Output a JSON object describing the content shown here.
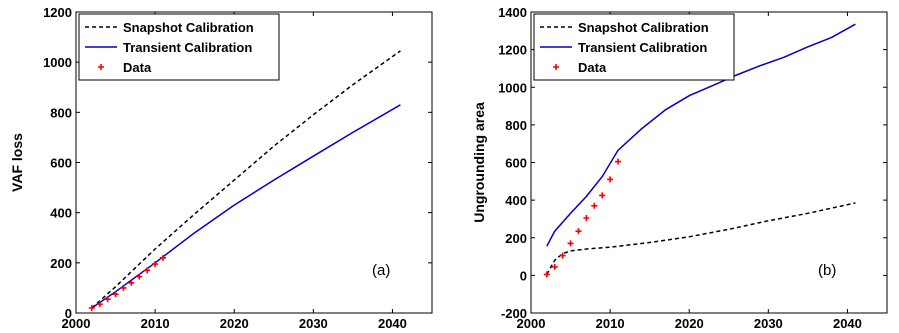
{
  "chart_data": [
    {
      "type": "line",
      "panel_label": "(a)",
      "xlabel": "",
      "ylabel": "VAF loss",
      "xlim": [
        2000,
        2045
      ],
      "ylim": [
        0,
        1200
      ],
      "xticks": [
        2000,
        2010,
        2020,
        2030,
        2040
      ],
      "yticks": [
        0,
        200,
        400,
        600,
        800,
        1000,
        1200
      ],
      "grid": false,
      "legend_position": "top-left",
      "series": [
        {
          "name": "Snapshot Calibration",
          "style": "dashed",
          "color": "#000000",
          "x": [
            2002,
            2005,
            2010,
            2015,
            2020,
            2025,
            2030,
            2035,
            2041
          ],
          "y": [
            20,
            105,
            255,
            395,
            530,
            665,
            790,
            910,
            1045
          ]
        },
        {
          "name": "Transient Calibration",
          "style": "solid",
          "color": "#0000cc",
          "x": [
            2002,
            2005,
            2010,
            2015,
            2020,
            2025,
            2030,
            2035,
            2041
          ],
          "y": [
            20,
            85,
            200,
            320,
            430,
            530,
            625,
            720,
            830
          ]
        },
        {
          "name": "Data",
          "style": "marker-plus",
          "color": "#ff0000",
          "x": [
            2002,
            2003,
            2004,
            2005,
            2006,
            2007,
            2008,
            2009,
            2010,
            2011
          ],
          "y": [
            20,
            35,
            55,
            75,
            100,
            120,
            145,
            170,
            195,
            220
          ]
        }
      ]
    },
    {
      "type": "line",
      "panel_label": "(b)",
      "xlabel": "",
      "ylabel": "Ungrounding area",
      "xlim": [
        2000,
        2045
      ],
      "ylim": [
        -200,
        1400
      ],
      "xticks": [
        2000,
        2010,
        2020,
        2030,
        2040
      ],
      "yticks": [
        -200,
        0,
        200,
        400,
        600,
        800,
        1000,
        1200,
        1400
      ],
      "grid": false,
      "legend_position": "top-left",
      "series": [
        {
          "name": "Snapshot Calibration",
          "style": "dashed",
          "color": "#000000",
          "x": [
            2002,
            2003,
            2004,
            2005,
            2007,
            2010,
            2015,
            2020,
            2025,
            2030,
            2035,
            2041
          ],
          "y": [
            5,
            80,
            115,
            130,
            140,
            150,
            175,
            205,
            245,
            290,
            330,
            385
          ]
        },
        {
          "name": "Transient Calibration",
          "style": "solid",
          "color": "#0000cc",
          "x": [
            2002,
            2003,
            2005,
            2007,
            2009,
            2011,
            2014,
            2017,
            2020,
            2023,
            2026,
            2029,
            2032,
            2035,
            2038,
            2041
          ],
          "y": [
            155,
            235,
            330,
            420,
            525,
            665,
            780,
            880,
            955,
            1010,
            1065,
            1115,
            1160,
            1215,
            1265,
            1335
          ]
        },
        {
          "name": "Data",
          "style": "marker-plus",
          "color": "#ff0000",
          "x": [
            2002,
            2003,
            2004,
            2005,
            2006,
            2007,
            2008,
            2009,
            2010,
            2011
          ],
          "y": [
            5,
            45,
            105,
            170,
            235,
            305,
            370,
            425,
            510,
            605
          ]
        }
      ]
    }
  ]
}
